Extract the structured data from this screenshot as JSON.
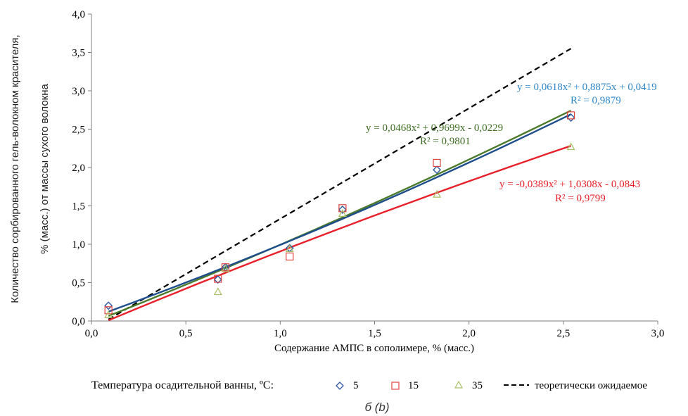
{
  "colors": {
    "t5": "#1f4e8c",
    "t15": "#e8202a",
    "t35": "#4a7a2a",
    "theory": "#000000",
    "marker5": "#2e5aa0",
    "marker15": "#e0443f",
    "marker35": "#a8bf63",
    "eq5": "#2e86c8",
    "eq15": "#e8202a",
    "eq35": "#3e6e23"
  },
  "chart_data": {
    "type": "scatter",
    "subtitle": "б (b)",
    "xlabel": "Содержание АМПС  в сополимере, % (масс.)",
    "ylabel_lines": [
      "Количество сорбированного гель-волокном красителя,",
      "% (масс.) от массы сухого волокна"
    ],
    "xlim": [
      0,
      3.0
    ],
    "ylim": [
      0,
      4.0
    ],
    "x_ticks": [
      0,
      0.5,
      1.0,
      1.5,
      2.0,
      2.5,
      3.0
    ],
    "x_tick_labels": [
      "0,0",
      "0,5",
      "1,0",
      "1,5",
      "2,0",
      "2,5",
      "3,0"
    ],
    "y_ticks": [
      0,
      0.5,
      1.0,
      1.5,
      2.0,
      2.5,
      3.0,
      3.5,
      4.0
    ],
    "y_tick_labels": [
      "0,0",
      "0,5",
      "1,0",
      "1,5",
      "2,0",
      "2,5",
      "3,0",
      "3,5",
      "4,0"
    ],
    "grid": false,
    "legend": {
      "title": "Температура осадительной ванны, ºС:",
      "position": "bottom",
      "entries": [
        {
          "label": "5",
          "marker": "diamond",
          "color_key": "marker5"
        },
        {
          "label": "15",
          "marker": "square",
          "color_key": "marker15"
        },
        {
          "label": "35",
          "marker": "triangle",
          "color_key": "marker35"
        },
        {
          "label": "теоретически ожидаемое",
          "marker": "dash-line",
          "color_key": "theory"
        }
      ]
    },
    "series": [
      {
        "name": "5",
        "marker": "diamond",
        "color_key": "marker5",
        "line_color_key": "t5",
        "x": [
          0.09,
          0.67,
          0.71,
          1.05,
          1.33,
          1.83,
          2.54
        ],
        "y": [
          0.2,
          0.54,
          0.7,
          0.95,
          1.45,
          1.97,
          2.65
        ],
        "trend": {
          "a": 0.0618,
          "b": 0.8875,
          "c": 0.0419
        },
        "equation": "y = 0,0618x² + 0,8875x + 0,0419",
        "r2": "R² = 0,9879"
      },
      {
        "name": "15",
        "marker": "square",
        "color_key": "marker15",
        "line_color_key": "t15",
        "x": [
          0.09,
          0.67,
          0.71,
          1.05,
          1.33,
          1.83,
          2.54
        ],
        "y": [
          0.14,
          0.55,
          0.7,
          0.84,
          1.47,
          2.06,
          2.68
        ],
        "trend": {
          "a": -0.0389,
          "b": 1.0308,
          "c": -0.0843
        },
        "equation": "y = -0,0389x² + 1,0308x  - 0,0843",
        "r2": "R² = 0,9799"
      },
      {
        "name": "35",
        "marker": "triangle",
        "color_key": "marker35",
        "line_color_key": "t35",
        "x": [
          0.09,
          0.67,
          0.71,
          1.05,
          1.33,
          1.83,
          2.54
        ],
        "y": [
          0.08,
          0.38,
          0.68,
          0.94,
          1.4,
          1.65,
          2.27
        ],
        "trend": {
          "a": 0.0468,
          "b": 0.9699,
          "c": -0.0229
        },
        "equation": "y = 0,0468x² + 0,9699x  - 0,0229",
        "r2": "R² = 0,9801"
      }
    ],
    "theoretical": {
      "name": "теоретически ожидаемое",
      "x": [
        0.09,
        2.54
      ],
      "y": [
        0.02,
        3.55
      ]
    }
  }
}
